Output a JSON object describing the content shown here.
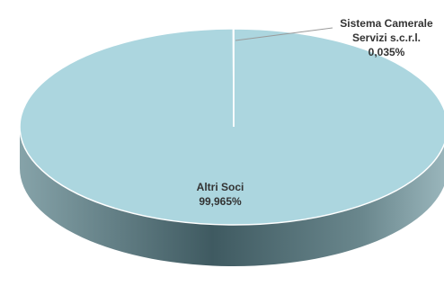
{
  "chart_data": {
    "type": "pie",
    "categories": [
      "Altri Soci",
      "Sistema Camerale Servizi s.c.r.l."
    ],
    "values": [
      99.965,
      0.035
    ],
    "value_labels": [
      "99,965%",
      "0,035%"
    ],
    "colors": [
      "#acd6df",
      "#acd6df"
    ]
  }
}
